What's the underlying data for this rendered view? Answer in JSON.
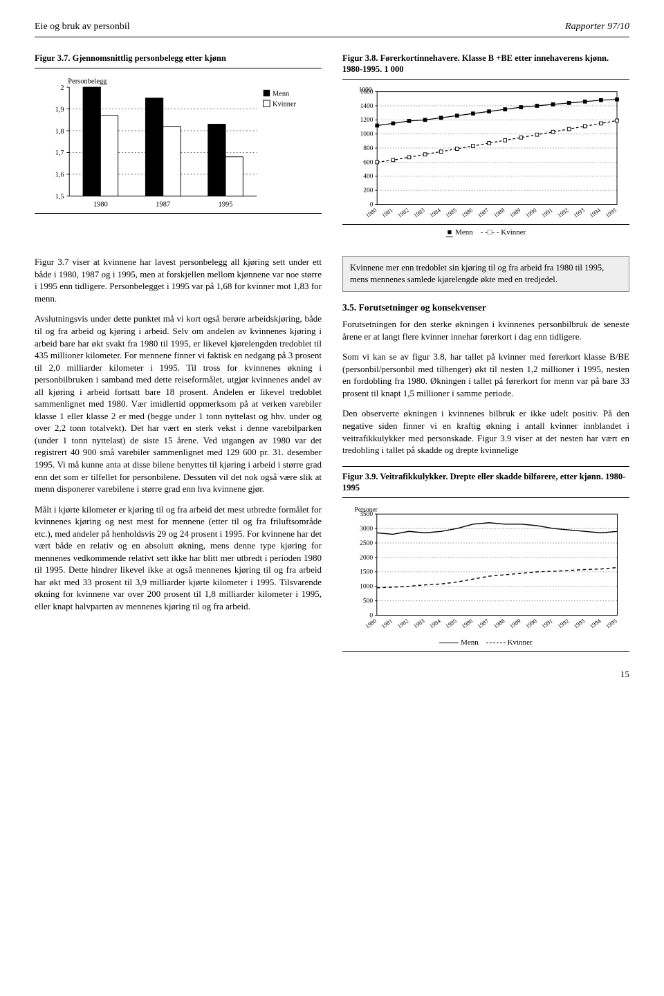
{
  "header": {
    "left": "Eie og bruk av personbil",
    "right": "Rapporter 97/10"
  },
  "fig37": {
    "title": "Figur 3.7. Gjennomsnittlig personbelegg etter kjønn",
    "type": "bar",
    "ylabel": "Personbelegg",
    "categories": [
      "1980",
      "1987",
      "1995"
    ],
    "series": [
      {
        "name": "Menn",
        "values": [
          2.0,
          1.95,
          1.83
        ],
        "color": "#000000"
      },
      {
        "name": "Kvinner",
        "values": [
          1.87,
          1.82,
          1.68
        ],
        "color": "#ffffff"
      }
    ],
    "ylim": [
      1.5,
      2.0
    ],
    "yticks": [
      1.5,
      1.6,
      1.7,
      1.8,
      1.9,
      2.0
    ],
    "ytick_labels": [
      "1,5",
      "1,6",
      "1,7",
      "1,8",
      "1,9",
      "2"
    ],
    "bar_border": "#000000",
    "legend": {
      "menn": "Menn",
      "kvinner": "Kvinner"
    }
  },
  "fig38": {
    "title": "Figur 3.8. Førerkortinnehavere. Klasse B +BE etter innehaverens kjønn. 1980-1995. 1 000",
    "type": "line",
    "years": [
      "1980",
      "1981",
      "1982",
      "1983",
      "1984",
      "1985",
      "1986",
      "1987",
      "1988",
      "1989",
      "1990",
      "1991",
      "1992",
      "1993",
      "1994",
      "1995"
    ],
    "series": [
      {
        "name": "Menn",
        "values": [
          1120,
          1150,
          1185,
          1200,
          1230,
          1260,
          1290,
          1320,
          1350,
          1380,
          1400,
          1420,
          1440,
          1460,
          1480,
          1490
        ],
        "color": "#000000",
        "marker": "square-filled"
      },
      {
        "name": "Kvinner",
        "values": [
          600,
          630,
          670,
          710,
          750,
          790,
          830,
          870,
          910,
          950,
          990,
          1030,
          1070,
          1110,
          1150,
          1190
        ],
        "color": "#000000",
        "marker": "square-open"
      }
    ],
    "ylim": [
      0,
      1600
    ],
    "yticks": [
      0,
      200,
      400,
      600,
      800,
      1000,
      1200,
      1400,
      1600
    ],
    "extra_ytick": "1000",
    "grid_color": "#888888",
    "legend": {
      "menn": "Menn",
      "kvinner": "Kvinner"
    }
  },
  "fig39": {
    "title": "Figur 3.9. Veitrafikkulykker. Drepte eller skadde bilførere, etter kjønn. 1980-1995",
    "type": "line",
    "ylabel": "Personer",
    "years": [
      "1980",
      "1981",
      "1982",
      "1983",
      "1984",
      "1985",
      "1986",
      "1987",
      "1988",
      "1989",
      "1990",
      "1991",
      "1992",
      "1993",
      "1994",
      "1995"
    ],
    "series": [
      {
        "name": "Menn",
        "values": [
          2850,
          2800,
          2900,
          2850,
          2900,
          3000,
          3150,
          3200,
          3150,
          3150,
          3100,
          3000,
          2950,
          2900,
          2850,
          2900
        ],
        "color": "#000000",
        "dash": "solid"
      },
      {
        "name": "Kvinner",
        "values": [
          950,
          970,
          1000,
          1050,
          1080,
          1150,
          1250,
          1350,
          1400,
          1450,
          1500,
          1520,
          1550,
          1580,
          1600,
          1650
        ],
        "color": "#000000",
        "dash": "dashed"
      }
    ],
    "ylim": [
      0,
      3500
    ],
    "yticks": [
      0,
      500,
      1000,
      1500,
      2000,
      2500,
      3000,
      3500
    ],
    "grid_color": "#888888",
    "legend": {
      "menn": "Menn",
      "kvinner": "Kvinner"
    }
  },
  "text": {
    "left_p1": "Figur 3.7 viser at kvinnene har lavest personbelegg all kjøring sett under ett både i 1980, 1987 og i 1995, men at forskjellen mellom kjønnene var noe større i 1995 enn tidligere. Personbelegget i 1995 var på 1,68 for kvinner mot 1,83 for menn.",
    "left_p2": "Avslutningsvis under dette punktet må vi kort også berøre arbeidskjøring, både til og fra arbeid og kjøring i arbeid. Selv om andelen av kvinnenes kjøring i arbeid bare har økt svakt fra 1980 til 1995, er likevel kjørelengden tredoblet til 435 millioner kilometer. For mennene finner vi faktisk en nedgang på 3 prosent til 2,0 milliarder kilometer i 1995. Til tross for kvinnenes økning i personbilbruken i samband med dette reiseformålet, utgjør kvinnenes andel av all kjøring i arbeid fortsatt bare 18 prosent. Andelen er likevel tredoblet sammenlignet med 1980. Vær imidlertid oppmerksom på at verken varebiler klasse 1 eller klasse 2 er med (begge under 1 tonn nyttelast og hhv. under og over 2,2 tonn totalvekt). Det har vært en sterk vekst i denne varebilparken (under 1 tonn nyttelast) de siste 15 årene. Ved utgangen av 1980 var det registrert 40 900 små varebiler sammenlignet med 129 600 pr. 31. desember 1995. Vi må kunne anta at disse bilene benyttes til kjøring i arbeid i større grad enn det som er tilfellet for personbilene. Dessuten vil det nok også være slik at menn disponerer varebilene i større grad enn hva kvinnene gjør.",
    "left_p3": "Målt i kjørte kilometer er kjøring til og fra arbeid det mest utbredte formålet for kvinnenes kjøring og nest mest for mennene (etter til og fra friluftsområde etc.), med andeler på henholdsvis 29 og 24 prosent i 1995. For kvinnene har det vært både en relativ og en absolutt økning, mens denne type kjøring for mennenes vedkommende relativt sett ikke har blitt mer utbredt i perioden 1980 til 1995. Dette hindrer likevel ikke at også mennenes kjøring til og fra arbeid har økt med 33 prosent til 3,9 milliarder kjørte kilometer i 1995. Tilsvarende økning for kvinnene var over 200 prosent til 1,8 milliarder kilometer i 1995, eller knapt halvparten av mennenes kjøring til og fra arbeid.",
    "highlight": "Kvinnene mer enn tredoblet sin kjøring til og fra arbeid fra 1980 til 1995, mens mennenes samlede kjørelengde økte med en tredjedel.",
    "section35_heading": "3.5.  Forutsetninger og konsekvenser",
    "right_p1": "Forutsetningen for den sterke økningen i kvinnenes personbilbruk de seneste årene er at langt flere kvinner innehar førerkort i dag enn tidligere.",
    "right_p2": "Som vi kan se av figur 3.8, har tallet på kvinner med førerkort klasse B/BE (personbil/personbil med tilhenger) økt til nesten 1,2 millioner i 1995, nesten en fordobling fra 1980. Økningen i tallet på førerkort for menn var på bare 33 prosent til knapt 1,5 millioner i samme periode.",
    "right_p3": "Den observerte økningen i kvinnenes bilbruk er ikke udelt positiv. På den negative siden finner vi en kraftig økning i antall kvinner innblandet i veitrafikkulykker med personskade. Figur 3.9 viser at det nesten har vært en tredobling i tallet på skadde og drepte kvinnelige"
  },
  "page_number": "15"
}
